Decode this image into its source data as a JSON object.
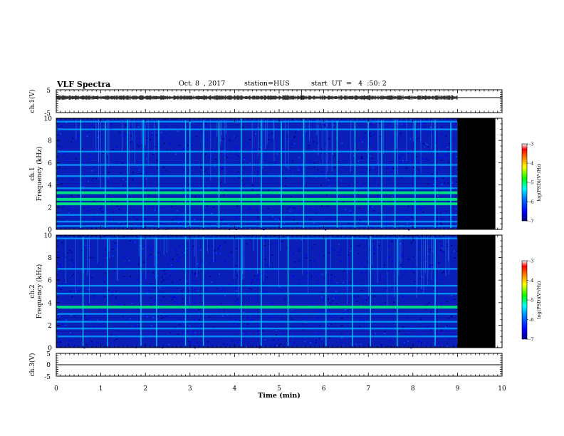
{
  "header": {
    "title": "VLF Spectra",
    "date": "Oct. 8  , 2017",
    "station": "station=HUS",
    "start": "start  UT  =   4  :50: 2"
  },
  "chart_data": [
    {
      "type": "line",
      "panel": "ch1-waveform",
      "ylabel": "ch.1(V)",
      "ylim": [
        -5,
        5
      ],
      "yticks": [
        "5",
        "-5"
      ],
      "xlim": [
        0,
        10
      ],
      "baseline": 0,
      "data_end_min": 9.0
    },
    {
      "type": "heatmap",
      "panel": "ch1-spectrogram",
      "ylabel": "ch.1\nFrequency (kHz)",
      "ylim": [
        0,
        10
      ],
      "yticks": [
        "0",
        "2",
        "4",
        "6",
        "8",
        "10"
      ],
      "xlim": [
        0,
        10
      ],
      "data_end_min": 9.0,
      "bands_khz": [
        0.3,
        0.7,
        1.3,
        2.3,
        2.7,
        3.3,
        3.7,
        4.8,
        5.8,
        7.0,
        9.0,
        9.7
      ],
      "bright_bands_khz": [
        2.3,
        2.7,
        3.3
      ],
      "spikes_min": [
        0.55,
        1.1,
        1.6,
        1.95,
        2.3,
        2.9,
        3.0,
        3.3,
        3.65,
        4.15,
        4.6,
        5.05,
        5.55,
        6.3,
        6.7,
        7.0,
        7.3,
        7.6,
        8.05,
        8.5,
        8.85
      ],
      "colorbar": {
        "label": "log(PSD)(V²/Hz)",
        "min": -7,
        "max": -3,
        "ticks": [
          "-3",
          "-4",
          "-5",
          "-6",
          "-7"
        ]
      }
    },
    {
      "type": "heatmap",
      "panel": "ch2-spectrogram",
      "ylabel": "ch.2\nFrequency (kHz)",
      "ylim": [
        0,
        10
      ],
      "yticks": [
        "0",
        "2",
        "4",
        "6",
        "8",
        "10"
      ],
      "xlim": [
        0,
        10
      ],
      "data_end_min": 9.0,
      "bands_khz": [
        1.0,
        1.7,
        2.3,
        3.0,
        3.6,
        4.8,
        5.5,
        7.0,
        9.7
      ],
      "bright_bands_khz": [
        3.6
      ],
      "spikes_min": [
        0.6,
        1.15,
        1.9,
        2.25,
        2.9,
        3.3,
        4.15,
        4.6,
        5.2,
        6.05,
        6.65,
        7.05,
        7.65,
        8.5
      ],
      "colorbar": {
        "label": "log(PSD)(V²/Hz)",
        "min": -7,
        "max": -3,
        "ticks": [
          "-3",
          "-4",
          "-5",
          "-6",
          "-7"
        ]
      }
    },
    {
      "type": "line",
      "panel": "ch3-waveform",
      "ylabel": "ch.3(V)",
      "ylim": [
        -5,
        5
      ],
      "yticks": [
        "5",
        "0",
        "-5"
      ],
      "xlim": [
        0,
        10
      ],
      "xticks": [
        "0",
        "1",
        "2",
        "3",
        "4",
        "5",
        "6",
        "7",
        "8",
        "9",
        "10"
      ],
      "xlabel": "Time (min)",
      "baseline": 0
    }
  ],
  "colors": {
    "colormap": [
      "#000080",
      "#0000ff",
      "#0080ff",
      "#00ffff",
      "#00ff80",
      "#00ff00",
      "#80ff00",
      "#ffff00",
      "#ff8000",
      "#ff0000",
      "#ffffff"
    ]
  }
}
